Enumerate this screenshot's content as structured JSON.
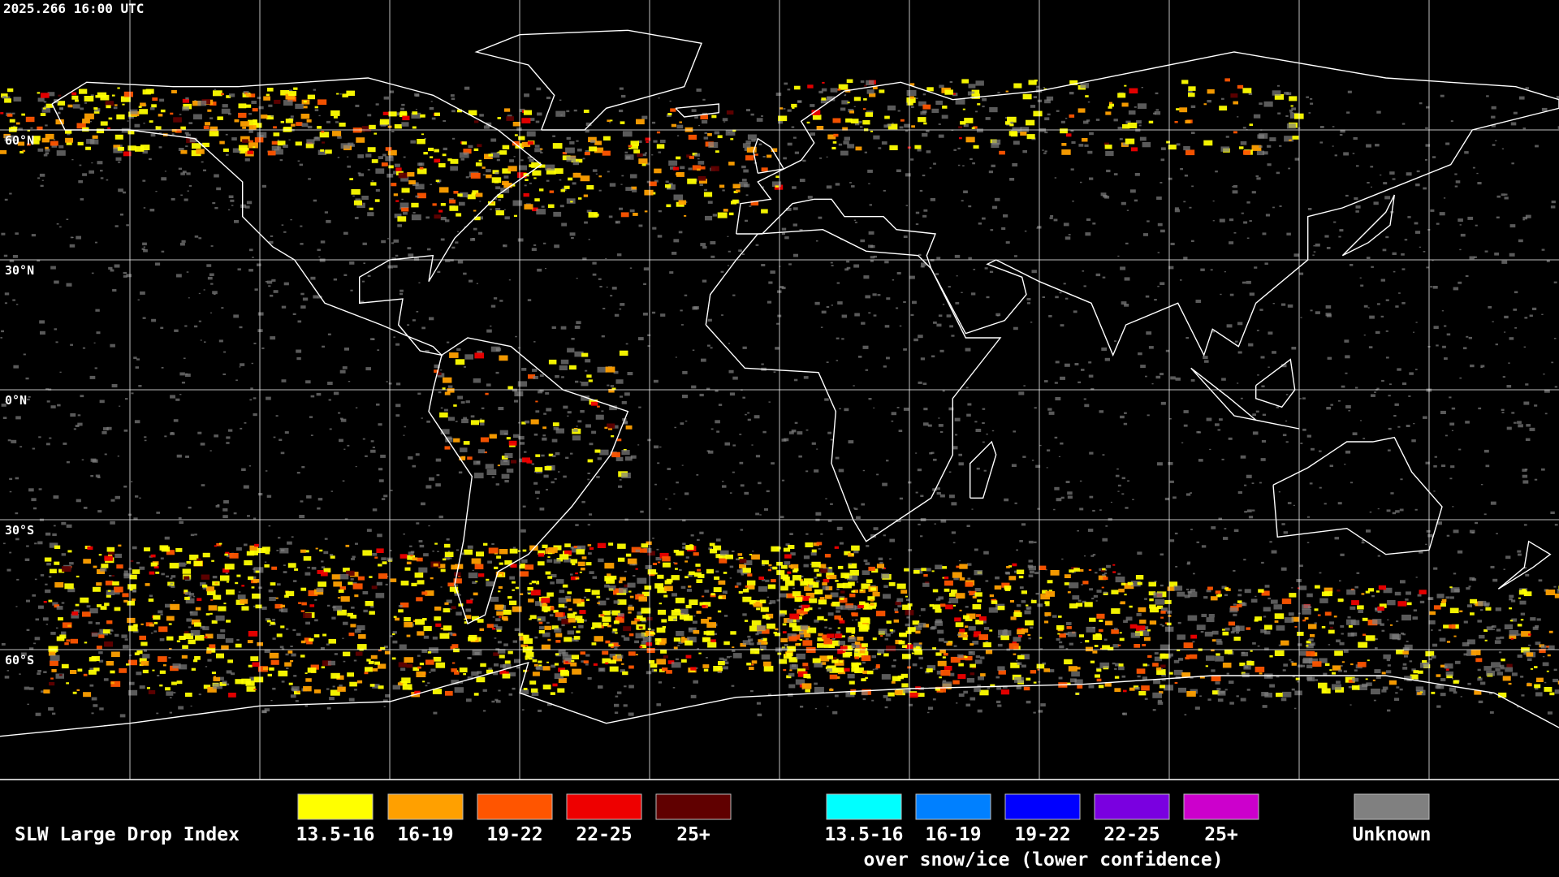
{
  "map": {
    "timestamp": "2025.266 16:00 UTC",
    "lat_labels": [
      "60°N",
      "30°N",
      "0°N",
      "30°S",
      "60°S"
    ]
  },
  "legend": {
    "title": "SLW Large Drop Index",
    "items": [
      {
        "label": "13.5-16",
        "color": "#ffff00"
      },
      {
        "label": "16-19",
        "color": "#ffa000"
      },
      {
        "label": "19-22",
        "color": "#ff5500"
      },
      {
        "label": "22-25",
        "color": "#ee0000"
      },
      {
        "label": "25+",
        "color": "#600000"
      }
    ],
    "snow_items": [
      {
        "label": "13.5-16",
        "color": "#00ffff"
      },
      {
        "label": "16-19",
        "color": "#0080ff"
      },
      {
        "label": "19-22",
        "color": "#0000ff"
      },
      {
        "label": "22-25",
        "color": "#7a00e0"
      },
      {
        "label": "25+",
        "color": "#cc00cc"
      }
    ],
    "snow_caption": "over snow/ice (lower confidence)",
    "unknown": {
      "label": "Unknown",
      "color": "#808080"
    }
  }
}
